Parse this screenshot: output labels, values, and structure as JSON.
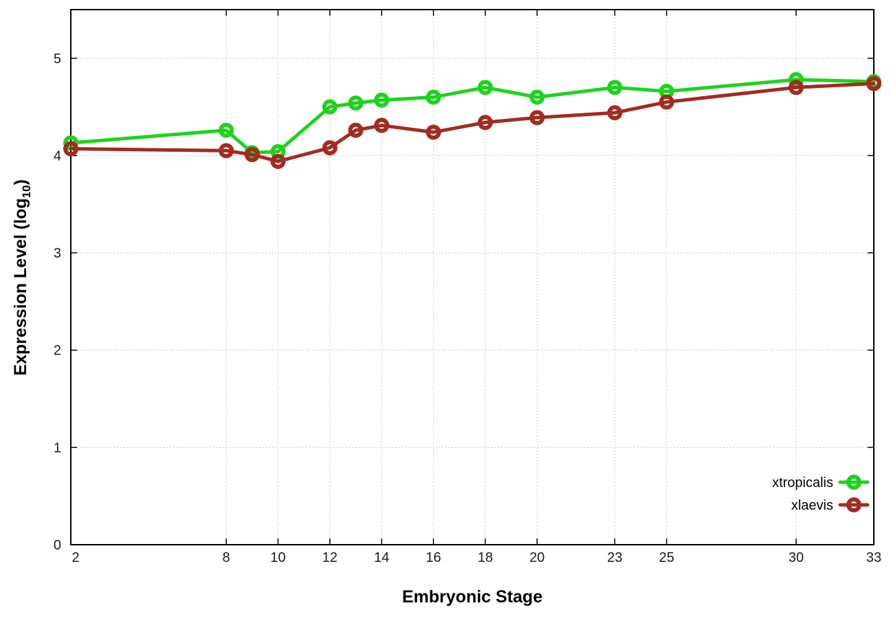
{
  "figure": {
    "background": "#ffffff",
    "border_color": "#000000",
    "grid_color": "#b8b8b8",
    "tick_color": "#000000",
    "tick_label_color": "#1a1a1a"
  },
  "chart_data": {
    "type": "line",
    "title": "",
    "xlabel": "Embryonic Stage",
    "ylabel": "Expression Level (log10)",
    "ylabel_parts": {
      "main": "Expression Level (log",
      "sub": "10",
      "close": ")"
    },
    "xlim": [
      2,
      33
    ],
    "ylim": [
      0,
      5.5
    ],
    "x_ticks": [
      2,
      8,
      10,
      12,
      14,
      16,
      18,
      20,
      23,
      25,
      30,
      33
    ],
    "y_ticks": [
      0,
      1,
      2,
      3,
      4,
      5
    ],
    "grid": true,
    "legend_position": "inside-bottom-right",
    "x": [
      2,
      8,
      9,
      10,
      12,
      13,
      14,
      16,
      18,
      20,
      23,
      25,
      30,
      33
    ],
    "series": [
      {
        "name": "xtropicalis",
        "color": "#1dd31d",
        "marker": "open-circle",
        "values": [
          4.13,
          4.26,
          4.03,
          4.04,
          4.5,
          4.54,
          4.57,
          4.6,
          4.7,
          4.6,
          4.7,
          4.66,
          4.78,
          4.76
        ]
      },
      {
        "name": "xlaevis",
        "color": "#a32b20",
        "marker": "open-circle",
        "values": [
          4.07,
          4.05,
          4.01,
          3.94,
          4.08,
          4.26,
          4.31,
          4.24,
          4.34,
          4.39,
          4.44,
          4.55,
          4.7,
          4.74
        ]
      }
    ]
  }
}
